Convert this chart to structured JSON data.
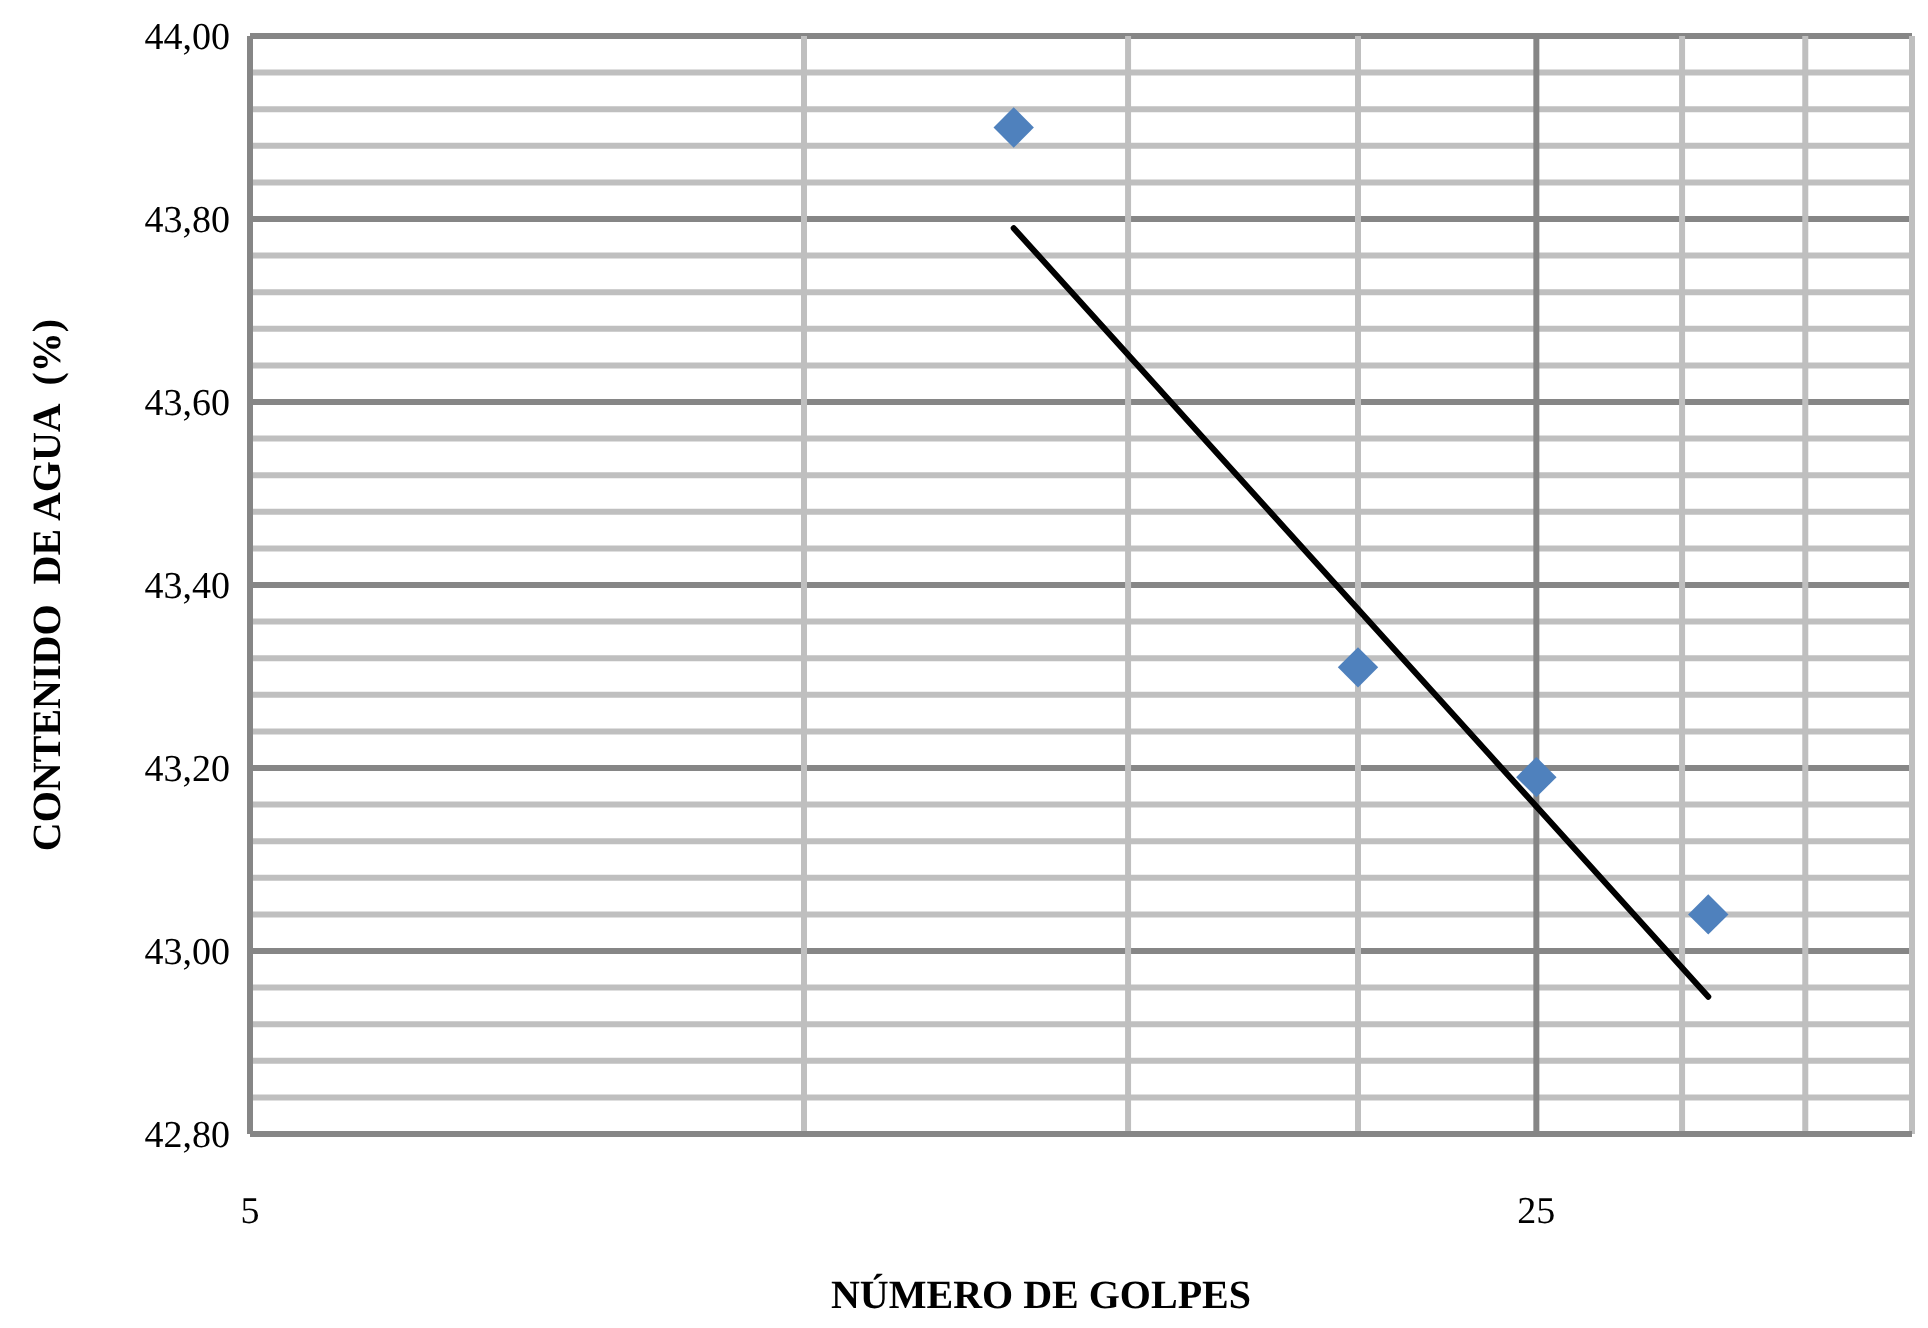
{
  "chart_data": {
    "type": "scatter",
    "xlabel": "NÚMERO DE GOLPES",
    "ylabel": "CONTENIDO  DE AGUA  (%)",
    "log": "x",
    "grid": true,
    "marker": "diamond",
    "xlim": [
      5,
      40
    ],
    "xticks": [
      5,
      {
        "value": 10,
        "label": null
      },
      {
        "value": 15,
        "label": null
      },
      {
        "value": 20,
        "label": null
      },
      25,
      {
        "value": 30,
        "label": null
      },
      {
        "value": 35,
        "label": null
      },
      {
        "value": 40,
        "label": null
      }
    ],
    "ylim": [
      42.8,
      44
    ],
    "yticks": [
      {
        "value": 42.8,
        "label": "42,80"
      },
      {
        "value": 42.84,
        "label": null
      },
      {
        "value": 42.88,
        "label": null
      },
      {
        "value": 42.92,
        "label": null
      },
      {
        "value": 42.96,
        "label": null
      },
      {
        "value": 43,
        "label": "43,00"
      },
      {
        "value": 43.04,
        "label": null
      },
      {
        "value": 43.08,
        "label": null
      },
      {
        "value": 43.12,
        "label": null
      },
      {
        "value": 43.16,
        "label": null
      },
      {
        "value": 43.2,
        "label": "43,20"
      },
      {
        "value": 43.24,
        "label": null
      },
      {
        "value": 43.28,
        "label": null
      },
      {
        "value": 43.32,
        "label": null
      },
      {
        "value": 43.36,
        "label": null
      },
      {
        "value": 43.4,
        "label": "43,40"
      },
      {
        "value": 43.44,
        "label": null
      },
      {
        "value": 43.48,
        "label": null
      },
      {
        "value": 43.52,
        "label": null
      },
      {
        "value": 43.56,
        "label": null
      },
      {
        "value": 43.6,
        "label": "43,60"
      },
      {
        "value": 43.64,
        "label": null
      },
      {
        "value": 43.68,
        "label": null
      },
      {
        "value": 43.72,
        "label": null
      },
      {
        "value": 43.76,
        "label": null
      },
      {
        "value": 43.8,
        "label": "43,80"
      },
      {
        "value": 43.84,
        "label": null
      },
      {
        "value": 43.88,
        "label": null
      },
      {
        "value": 43.92,
        "label": null
      },
      {
        "value": 43.96,
        "label": null
      },
      {
        "value": 44,
        "label": "44,00"
      }
    ],
    "series": [
      {
        "color": "#4f81bd",
        "x": [
          13,
          20,
          25,
          31
        ],
        "values": [
          43.9,
          43.31,
          43.19,
          43.04
        ]
      },
      {
        "type": "line",
        "color": "#000000",
        "marker": "none",
        "x": [
          13,
          31
        ],
        "values": [
          43.79,
          42.95
        ]
      }
    ]
  }
}
